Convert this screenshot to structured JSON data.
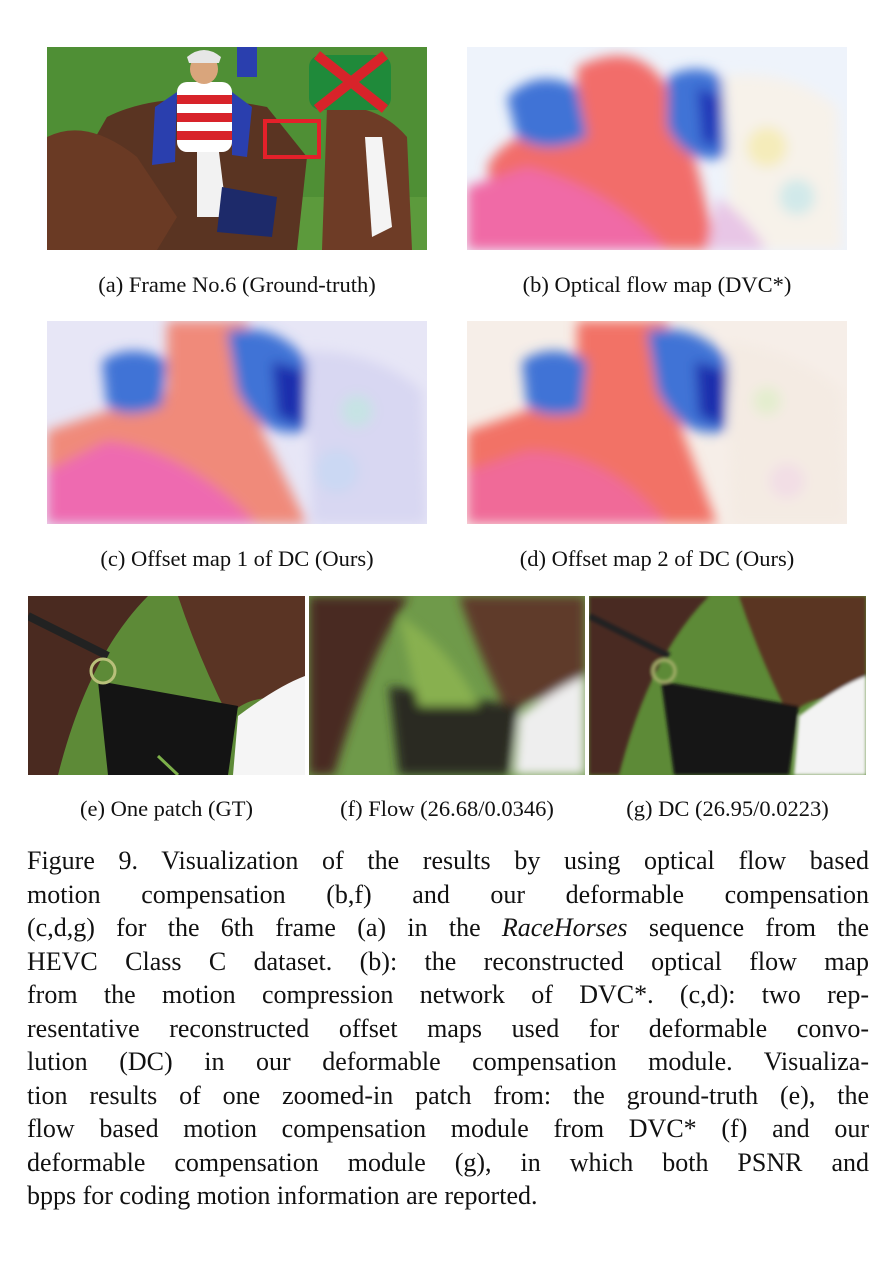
{
  "panels": [
    {
      "id": "a",
      "caption": "(a)  Frame No.6 (Ground-truth)"
    },
    {
      "id": "b",
      "caption": "(b)  Optical flow map (DVC*)"
    },
    {
      "id": "c",
      "caption": "(c)  Offset map 1 of DC (Ours)"
    },
    {
      "id": "d",
      "caption": "(d)  Offset map 2 of DC (Ours)"
    },
    {
      "id": "e",
      "caption": "(e)  One patch (GT)"
    },
    {
      "id": "f",
      "caption": "(f)  Flow (26.68/0.0346)"
    },
    {
      "id": "g",
      "caption": "(g)  DC (26.95/0.0223)"
    }
  ],
  "figure_caption": {
    "line1": "Figure 9. Visualization of the results by using optical flow based",
    "line2": "motion compensation (b,f) and our deformable compensation",
    "line3_pre": "(c,d,g) for the 6th frame (a) in the ",
    "line3_italic": "RaceHorses",
    "line3_post": " sequence from the",
    "line4": "HEVC Class C dataset.  (b):  the reconstructed optical flow map",
    "line5": "from the motion compression network of DVC*.  (c,d):  two rep-",
    "line6": "resentative reconstructed offset maps used for deformable convo-",
    "line7": "lution (DC) in our deformable compensation module.  Visualiza-",
    "line8": "tion results of one zoomed-in patch from: the ground-truth (e), the",
    "line9": "flow based motion compensation module from DVC* (f) and our",
    "line10": "deformable compensation module (g), in which both PSNR and",
    "line11": "bpps for coding motion information are reported."
  },
  "colors": {
    "flow_red": "#f26d6a",
    "flow_blue": "#3f73d6",
    "flow_pink": "#f06aa6",
    "grass": "#4f8f35",
    "horse_brown": "#5a3422",
    "highlight_box": "#e4202a"
  }
}
